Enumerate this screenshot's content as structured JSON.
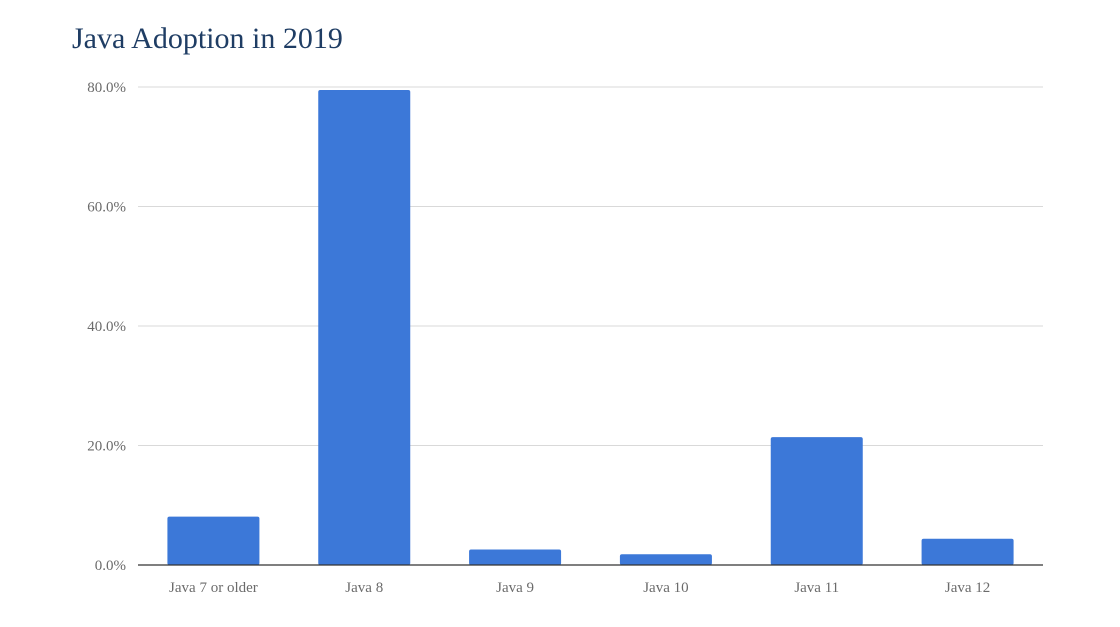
{
  "chart_data": {
    "type": "bar",
    "title": "Java Adoption in 2019",
    "xlabel": "",
    "ylabel": "",
    "categories": [
      "Java 7 or older",
      "Java 8",
      "Java 9",
      "Java 10",
      "Java 11",
      "Java 12"
    ],
    "values": [
      8.1,
      79.5,
      2.6,
      1.8,
      21.4,
      4.4
    ],
    "ylim": [
      0,
      80
    ],
    "yticks": [
      0,
      20,
      40,
      60,
      80
    ],
    "ytick_labels": [
      "0.0%",
      "20.0%",
      "40.0%",
      "60.0%",
      "80.0%"
    ],
    "grid": true,
    "legend": "none",
    "colors": {
      "bar": "#3c78d8",
      "title": "#1f3d64",
      "grid": "#d9d9d9",
      "axis": "#333333",
      "tick_label": "#6b6b6b"
    }
  }
}
